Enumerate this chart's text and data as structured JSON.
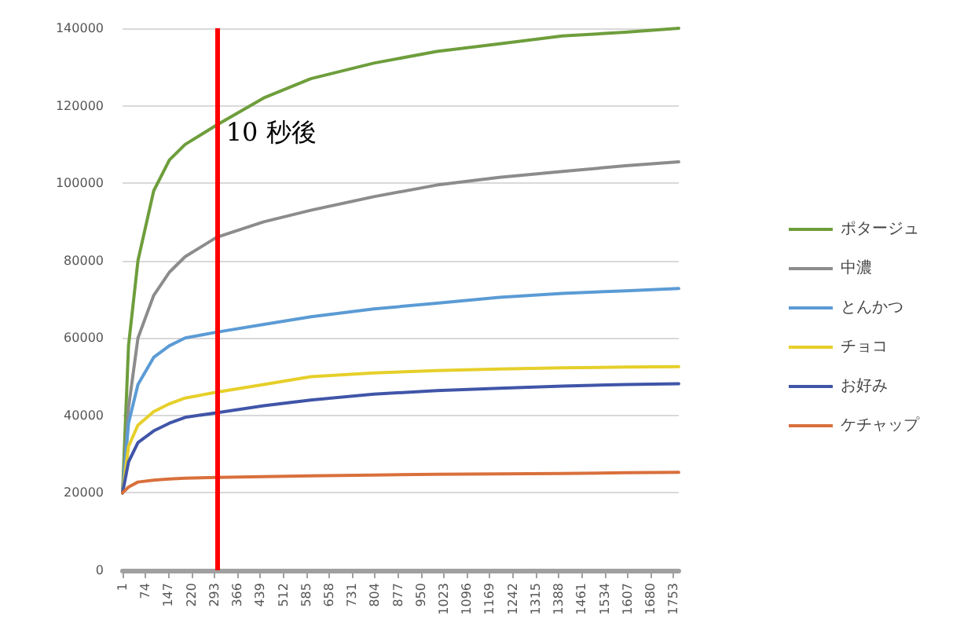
{
  "chart_data": {
    "type": "line",
    "x": [
      1,
      20,
      50,
      100,
      150,
      200,
      300,
      450,
      600,
      800,
      1000,
      1200,
      1400,
      1600,
      1770
    ],
    "series": [
      {
        "name": "ポタージュ",
        "color": "#6e9e3c",
        "values": [
          20000,
          58000,
          80000,
          98000,
          106000,
          110000,
          115000,
          122000,
          127000,
          131000,
          134000,
          136000,
          138000,
          139000,
          140000
        ]
      },
      {
        "name": "中濃",
        "color": "#8c8c8c",
        "values": [
          20000,
          42000,
          60000,
          71000,
          77000,
          81000,
          86000,
          90000,
          93000,
          96500,
          99500,
          101500,
          103000,
          104500,
          105500
        ]
      },
      {
        "name": "とんかつ",
        "color": "#5b9bd5",
        "values": [
          20000,
          38000,
          48000,
          55000,
          58000,
          60000,
          61500,
          63500,
          65500,
          67500,
          69000,
          70500,
          71500,
          72200,
          72800
        ]
      },
      {
        "name": "チョコ",
        "color": "#e6cf2a",
        "values": [
          20000,
          32000,
          37500,
          41000,
          43000,
          44500,
          46000,
          48000,
          50000,
          51000,
          51600,
          52000,
          52300,
          52500,
          52600
        ]
      },
      {
        "name": "お好み",
        "color": "#4055a8",
        "values": [
          20000,
          28000,
          33000,
          36000,
          38000,
          39500,
          40700,
          42500,
          44000,
          45500,
          46400,
          47000,
          47600,
          48000,
          48200
        ]
      },
      {
        "name": "ケチャップ",
        "color": "#d9703c",
        "values": [
          20000,
          21500,
          22800,
          23300,
          23600,
          23800,
          24000,
          24200,
          24400,
          24600,
          24800,
          24900,
          25000,
          25200,
          25300
        ]
      }
    ],
    "xlim": [
      1,
      1770
    ],
    "xticks": [
      1,
      74,
      147,
      220,
      293,
      366,
      439,
      512,
      585,
      658,
      731,
      804,
      877,
      950,
      1023,
      1096,
      1169,
      1242,
      1315,
      1388,
      1461,
      1534,
      1607,
      1680,
      1753
    ],
    "ylim": [
      0,
      140000
    ],
    "yticks": [
      0,
      20000,
      40000,
      60000,
      80000,
      100000,
      120000,
      140000
    ],
    "ref_lines": [
      {
        "axis": "x",
        "value": 300,
        "label": "10 秒後",
        "color": "#ff0000"
      }
    ],
    "grid": "y",
    "legend": "right",
    "marker": "none",
    "line_style": "solid"
  }
}
